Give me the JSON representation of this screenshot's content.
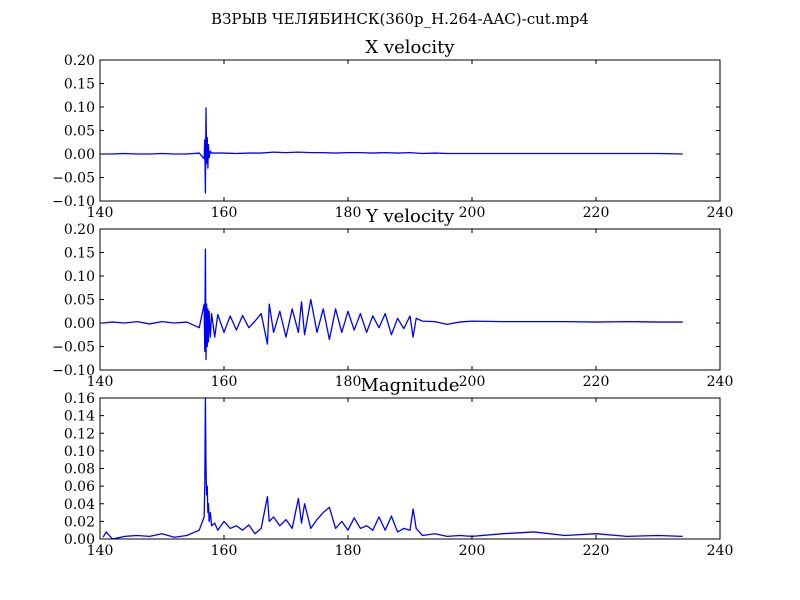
{
  "suptitle": "ВЗРЫВ ЧЕЛЯБИНСК(360p_H.264-AAC)-cut.mp4",
  "colors": {
    "line": "#0000ff",
    "axes": "#000000",
    "background": "#ffffff"
  },
  "chart_data": [
    {
      "type": "line",
      "title": "X velocity",
      "xlim": [
        140,
        240
      ],
      "ylim": [
        -0.1,
        0.2
      ],
      "xticks": [
        "140",
        "160",
        "180",
        "200",
        "220",
        "240"
      ],
      "yticks": [
        "−0.10",
        "−0.05",
        "0.00",
        "0.05",
        "0.10",
        "0.15",
        "0.20"
      ],
      "series": [
        {
          "x": [
            140.5,
            142,
            144,
            146,
            148,
            150,
            152,
            154,
            156,
            156.8,
            156.9,
            157.0,
            157.1,
            157.2,
            157.3,
            157.4,
            157.5,
            157.6,
            157.8,
            158,
            160,
            162,
            164,
            166,
            168,
            170,
            172,
            174,
            176,
            178,
            180,
            182,
            184,
            186,
            188,
            190,
            192,
            194,
            196,
            198,
            200,
            205,
            210,
            215,
            220,
            225,
            230,
            234
          ],
          "y": [
            0.0,
            0.0,
            0.001,
            0.0,
            0.0,
            0.001,
            0.0,
            0.0,
            0.002,
            -0.01,
            0.03,
            -0.083,
            0.098,
            -0.02,
            0.035,
            -0.03,
            0.02,
            -0.008,
            0.006,
            0.002,
            0.002,
            0.001,
            0.002,
            0.002,
            0.004,
            0.003,
            0.004,
            0.003,
            0.003,
            0.002,
            0.003,
            0.003,
            0.002,
            0.003,
            0.002,
            0.003,
            0.001,
            0.002,
            0.001,
            0.001,
            0.001,
            0.001,
            0.001,
            0.001,
            0.001,
            0.001,
            0.001,
            0.0
          ]
        }
      ]
    },
    {
      "type": "line",
      "title": "Y velocity",
      "xlim": [
        140,
        240
      ],
      "ylim": [
        -0.1,
        0.2
      ],
      "xticks": [
        "140",
        "160",
        "180",
        "200",
        "220",
        "240"
      ],
      "yticks": [
        "−0.10",
        "−0.05",
        "0.00",
        "0.05",
        "0.10",
        "0.15",
        "0.20"
      ],
      "series": [
        {
          "x": [
            140.5,
            142,
            144,
            146,
            148,
            150,
            152,
            154,
            156,
            156.8,
            156.9,
            157.0,
            157.1,
            157.2,
            157.3,
            157.4,
            157.5,
            157.6,
            157.8,
            158,
            158.5,
            159,
            160,
            161,
            162,
            163,
            164,
            165,
            166,
            167,
            167.3,
            168,
            169,
            170,
            171,
            172,
            172.5,
            173,
            174,
            175,
            176,
            177,
            178,
            179,
            180,
            181,
            182,
            183,
            184,
            185,
            186,
            187,
            188,
            189,
            190,
            190.5,
            191,
            192,
            194,
            196,
            198,
            200,
            205,
            210,
            215,
            220,
            225,
            230,
            234
          ],
          "y": [
            0.0,
            0.002,
            0.0,
            0.003,
            -0.002,
            0.003,
            0.0,
            0.002,
            -0.01,
            0.04,
            -0.06,
            0.157,
            -0.078,
            0.04,
            -0.05,
            0.03,
            -0.04,
            0.025,
            -0.03,
            0.02,
            -0.03,
            0.018,
            -0.02,
            0.015,
            -0.015,
            0.016,
            -0.01,
            0.004,
            0.02,
            -0.045,
            0.04,
            -0.02,
            0.025,
            -0.03,
            0.03,
            -0.02,
            0.045,
            -0.025,
            0.05,
            -0.02,
            0.03,
            -0.035,
            0.03,
            -0.02,
            0.025,
            -0.015,
            0.02,
            -0.02,
            0.015,
            -0.01,
            0.02,
            -0.025,
            0.01,
            -0.012,
            0.015,
            -0.03,
            0.01,
            0.004,
            0.003,
            -0.003,
            0.002,
            0.004,
            0.003,
            0.003,
            0.003,
            0.002,
            0.003,
            0.002,
            0.002
          ]
        }
      ]
    },
    {
      "type": "line",
      "title": "Magnitude",
      "xlim": [
        140,
        240
      ],
      "ylim": [
        0.0,
        0.16
      ],
      "xticks": [
        "140",
        "160",
        "180",
        "200",
        "220",
        "240"
      ],
      "yticks": [
        "0.00",
        "0.02",
        "0.04",
        "0.06",
        "0.08",
        "0.10",
        "0.12",
        "0.14",
        "0.16"
      ],
      "series": [
        {
          "x": [
            140.5,
            141,
            142,
            144,
            146,
            148,
            150,
            152,
            154,
            156,
            156.8,
            156.9,
            157.0,
            157.1,
            157.2,
            157.3,
            157.4,
            157.5,
            157.6,
            157.8,
            158,
            158.5,
            159,
            160,
            161,
            162,
            163,
            164,
            165,
            166,
            167,
            167.3,
            168,
            169,
            170,
            171,
            172,
            172.5,
            173,
            174,
            175,
            176,
            177,
            178,
            179,
            180,
            181,
            182,
            183,
            184,
            185,
            186,
            187,
            188,
            189,
            190,
            190.5,
            191,
            192,
            194,
            196,
            198,
            200,
            205,
            210,
            215,
            220,
            225,
            230,
            234
          ],
          "y": [
            0.002,
            0.008,
            0.0,
            0.003,
            0.004,
            0.003,
            0.006,
            0.002,
            0.004,
            0.01,
            0.025,
            0.06,
            0.16,
            0.08,
            0.05,
            0.06,
            0.03,
            0.04,
            0.02,
            0.03,
            0.015,
            0.018,
            0.01,
            0.02,
            0.012,
            0.015,
            0.01,
            0.016,
            0.006,
            0.012,
            0.048,
            0.02,
            0.025,
            0.015,
            0.022,
            0.012,
            0.046,
            0.018,
            0.04,
            0.012,
            0.022,
            0.03,
            0.036,
            0.012,
            0.02,
            0.01,
            0.024,
            0.012,
            0.015,
            0.01,
            0.025,
            0.01,
            0.026,
            0.008,
            0.012,
            0.01,
            0.034,
            0.012,
            0.004,
            0.006,
            0.003,
            0.004,
            0.003,
            0.006,
            0.008,
            0.004,
            0.006,
            0.003,
            0.004,
            0.003
          ]
        }
      ]
    }
  ]
}
